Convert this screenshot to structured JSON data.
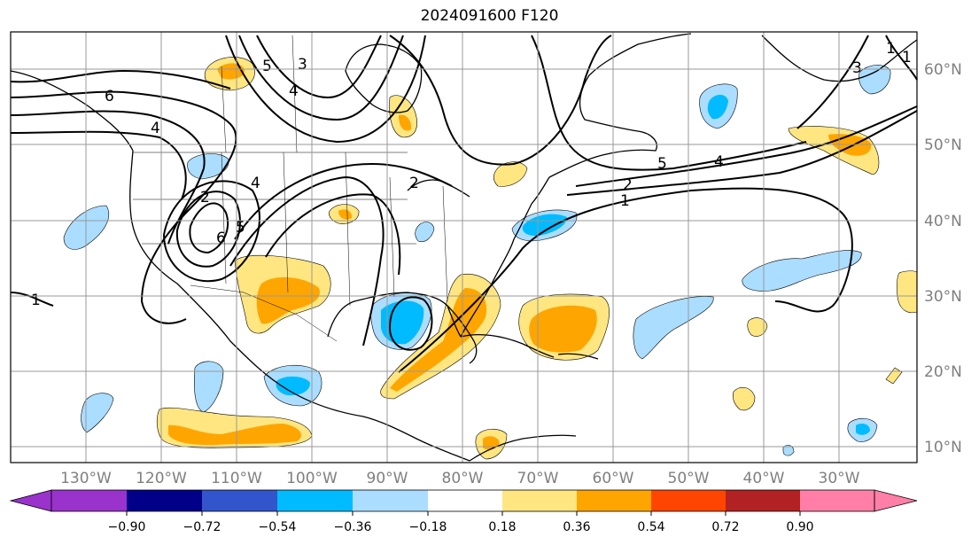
{
  "title": "2024091600 F120",
  "lon_labels": [
    "130°W",
    "120°W",
    "110°W",
    "100°W",
    "90°W",
    "80°W",
    "70°W",
    "60°W",
    "50°W",
    "40°W",
    "30°W"
  ],
  "lat_labels": [
    "60°N",
    "50°N",
    "40°N",
    "30°N",
    "20°N",
    "10°N"
  ],
  "colorbar": {
    "colors": [
      "#9933cc",
      "#000088",
      "#3355cc",
      "#00bbff",
      "#aaddff",
      "#ffffff",
      "#ffe680",
      "#ffa500",
      "#ff4500",
      "#b22222",
      "#ff7fa8"
    ],
    "labels": [
      "−0.90",
      "−0.72",
      "−0.54",
      "−0.36",
      "−0.18",
      "0.18",
      "0.36",
      "0.54",
      "0.72",
      "0.90"
    ]
  },
  "contour_labels": [
    "6",
    "4",
    "5",
    "3",
    "2",
    "1",
    "6",
    "5",
    "4",
    "2",
    "4",
    "5",
    "2",
    "1",
    "3",
    "1",
    "4",
    "1"
  ]
}
